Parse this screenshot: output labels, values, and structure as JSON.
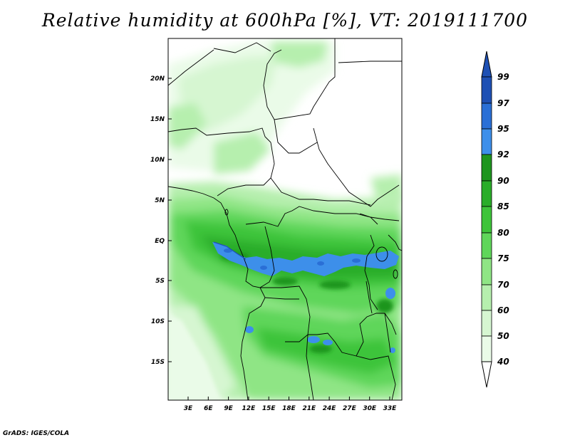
{
  "title": "Relative humidity at 600hPa [%], VT: 2019111700",
  "credit": "GrADS: IGES/COLA",
  "lat_labels": [
    "20N",
    "15N",
    "10N",
    "5N",
    "EQ",
    "5S",
    "10S",
    "15S"
  ],
  "lon_labels": [
    "3E",
    "6E",
    "9E",
    "12E",
    "15E",
    "18E",
    "21E",
    "24E",
    "27E",
    "30E",
    "33E"
  ],
  "colorbar": {
    "labels": [
      "99",
      "97",
      "95",
      "92",
      "90",
      "85",
      "80",
      "75",
      "70",
      "60",
      "50",
      "40"
    ],
    "colors": {
      "c40": "#ffffff",
      "c50": "#eafbe8",
      "c60": "#d6f6d1",
      "c70": "#b6efae",
      "c75": "#8fe585",
      "c80": "#5fd65a",
      "c85": "#3ec43a",
      "c90": "#2aad29",
      "c92": "#1e951f",
      "c95": "#3d8fea",
      "c97": "#2a6fd6",
      "c99": "#1e50b4"
    }
  }
}
